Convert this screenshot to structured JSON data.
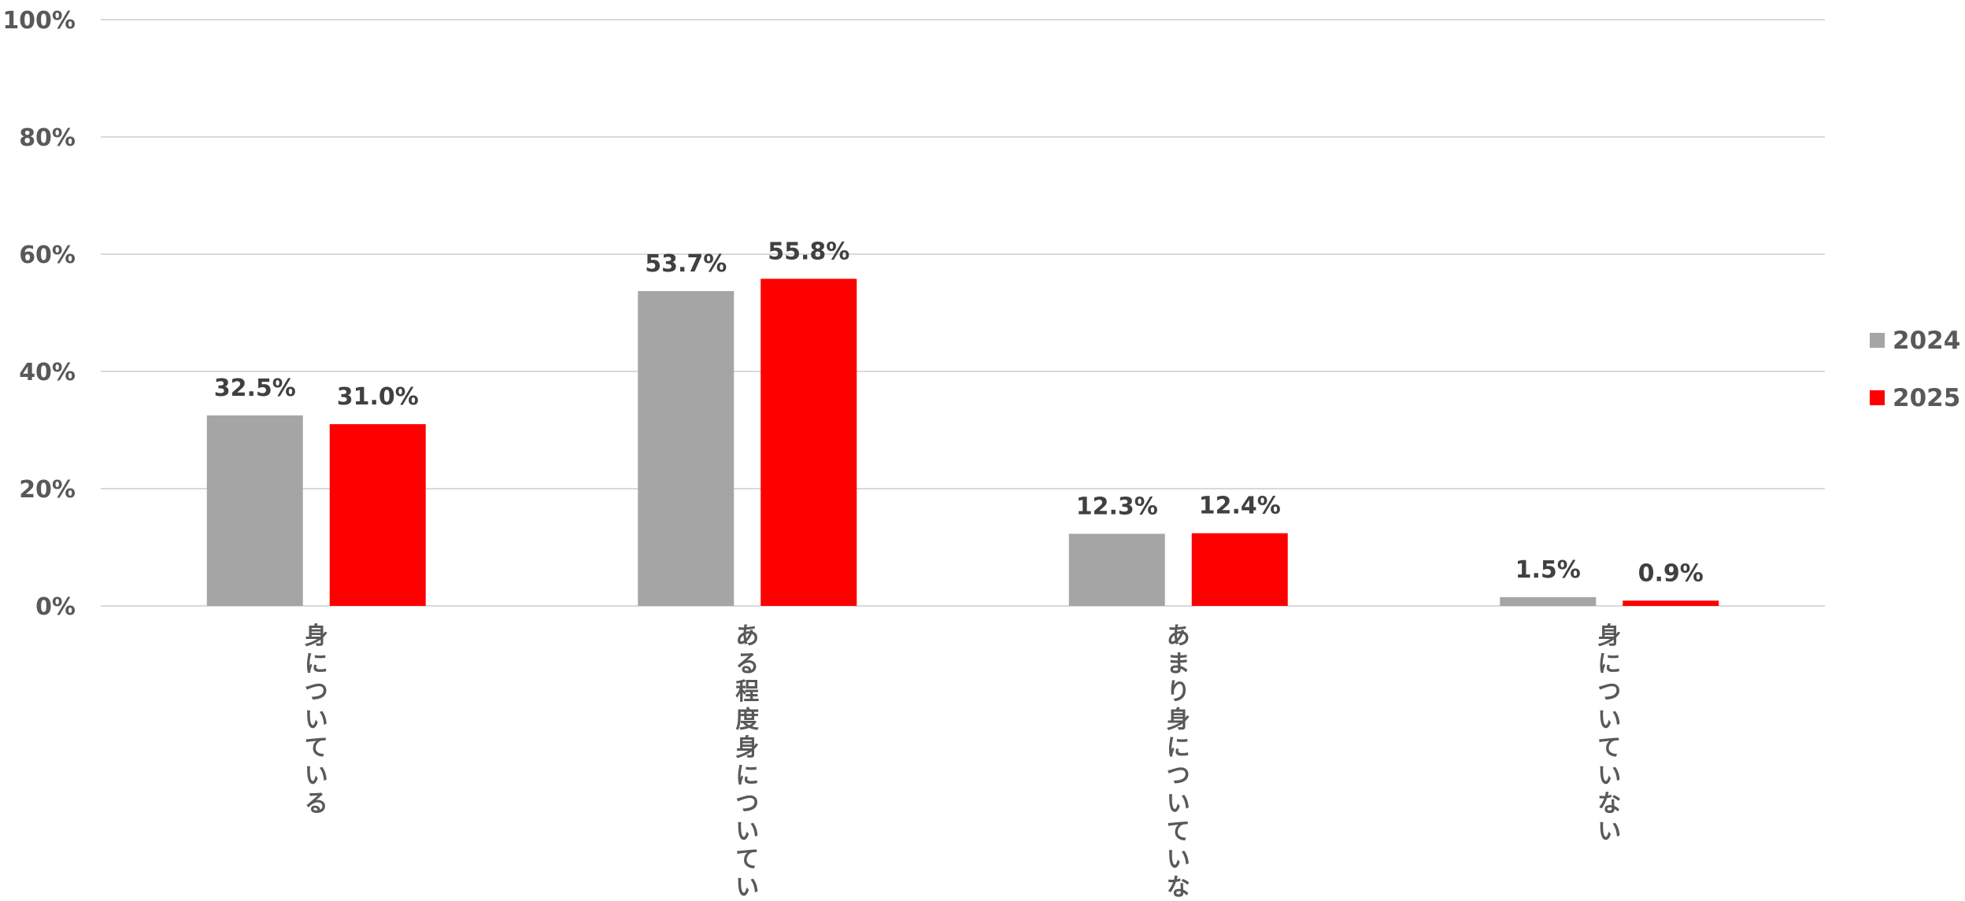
{
  "chart_data": {
    "type": "bar",
    "categories": [
      "身についている",
      "ある程度身についている",
      "あまり身についていない",
      "身についていない"
    ],
    "series": [
      {
        "name": "2024",
        "values": [
          32.5,
          53.7,
          12.3,
          1.5
        ],
        "labels": [
          "32.5%",
          "53.7%",
          "12.3%",
          "1.5%"
        ],
        "color": "#a5a5a5"
      },
      {
        "name": "2025",
        "values": [
          31.0,
          55.8,
          12.4,
          0.9
        ],
        "labels": [
          "31.0%",
          "55.8%",
          "12.4%",
          "0.9%"
        ],
        "color": "#ff0000"
      }
    ],
    "yticks": [
      0,
      20,
      40,
      60,
      80,
      100
    ],
    "ytick_labels": [
      "0%",
      "20%",
      "40%",
      "60%",
      "80%",
      "100%"
    ],
    "ylim": [
      0,
      100
    ],
    "grid": true,
    "legend_position": "right",
    "title": "",
    "xlabel": "",
    "ylabel": ""
  }
}
